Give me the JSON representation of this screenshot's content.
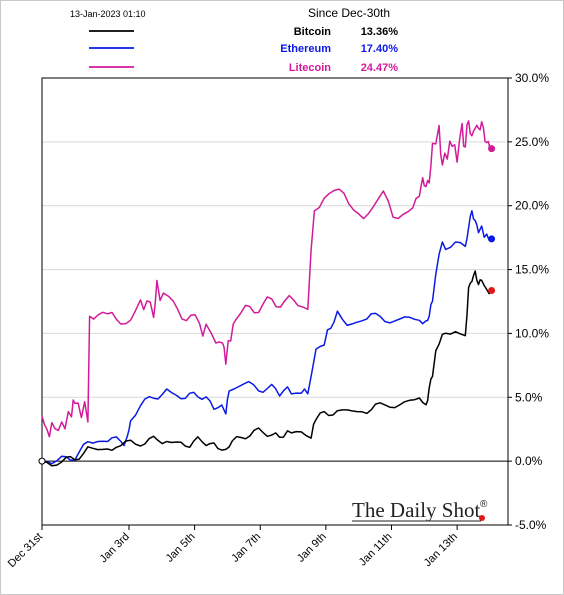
{
  "timestamp": "13-Jan-2023 01:10",
  "header": "Since Dec-30th",
  "brand": "The Daily Shot",
  "brand_mark": "®",
  "colors": {
    "bitcoin": "#000000",
    "ethereum": "#0a1ae6",
    "litecoin": "#d21a9a",
    "endpoint": "#e01818",
    "grid": "#d9d9d9"
  },
  "chart_data": {
    "type": "line",
    "x_ticks": [
      "Dec 31st",
      "Jan 3rd",
      "Jan 5th",
      "Jan 7th",
      "Jan 9th",
      "Jan 11th",
      "Jan 13th"
    ],
    "y_ticks": [
      "30.0%",
      "25.0%",
      "20.0%",
      "15.0%",
      "10.0%",
      "5.0%",
      "0.0%",
      "-5.0%"
    ],
    "ylim": [
      -5,
      30
    ],
    "grid": true,
    "legend_placement": "top",
    "series": [
      {
        "name": "Bitcoin",
        "last": "13.36%",
        "points": [
          [
            0,
            0
          ],
          [
            0.3,
            -0.2
          ],
          [
            0.6,
            0.2
          ],
          [
            1.0,
            0.3
          ],
          [
            1.4,
            0.8
          ],
          [
            1.7,
            0.9
          ],
          [
            2.0,
            1.0
          ],
          [
            2.4,
            0.9
          ],
          [
            2.7,
            1.5
          ],
          [
            3.0,
            1.6
          ],
          [
            3.4,
            1.8
          ],
          [
            3.8,
            1.6
          ],
          [
            4.1,
            1.4
          ],
          [
            4.5,
            1.5
          ],
          [
            5.0,
            1.5
          ],
          [
            5.6,
            0.8
          ],
          [
            5.8,
            1.6
          ],
          [
            6.2,
            2.0
          ],
          [
            6.6,
            2.2
          ],
          [
            7.0,
            2.0
          ],
          [
            7.6,
            2.1
          ],
          [
            7.9,
            2.3
          ],
          [
            8.2,
            2.2
          ],
          [
            8.35,
            3.5
          ],
          [
            8.6,
            3.8
          ],
          [
            9.0,
            3.7
          ],
          [
            9.3,
            3.9
          ],
          [
            9.6,
            3.8
          ],
          [
            9.9,
            4.0
          ],
          [
            10.3,
            4.2
          ],
          [
            10.6,
            4.5
          ],
          [
            10.9,
            4.6
          ],
          [
            11.2,
            4.7
          ],
          [
            11.5,
            4.8
          ],
          [
            11.7,
            4.5
          ],
          [
            11.8,
            5.5
          ],
          [
            11.9,
            7.0
          ],
          [
            12.1,
            9.5
          ],
          [
            12.3,
            10.0
          ],
          [
            12.6,
            10.5
          ],
          [
            12.9,
            9.8
          ],
          [
            13.0,
            13.5
          ],
          [
            13.1,
            14.2
          ],
          [
            13.2,
            14.8
          ],
          [
            13.3,
            13.8
          ],
          [
            13.4,
            14.3
          ],
          [
            13.55,
            13.5
          ],
          [
            13.7,
            13.36
          ]
        ]
      },
      {
        "name": "Ethereum",
        "last": "17.40%",
        "points": [
          [
            0,
            0
          ],
          [
            0.3,
            -0.1
          ],
          [
            0.6,
            0.2
          ],
          [
            1.0,
            0.5
          ],
          [
            1.4,
            1.5
          ],
          [
            1.7,
            1.8
          ],
          [
            2.0,
            1.6
          ],
          [
            2.4,
            1.4
          ],
          [
            2.6,
            1.6
          ],
          [
            2.7,
            3.5
          ],
          [
            3.0,
            4.5
          ],
          [
            3.4,
            5.2
          ],
          [
            3.8,
            5.5
          ],
          [
            4.1,
            5.0
          ],
          [
            4.5,
            5.4
          ],
          [
            5.0,
            4.8
          ],
          [
            5.6,
            3.8
          ],
          [
            5.7,
            5.5
          ],
          [
            6.0,
            5.8
          ],
          [
            6.3,
            5.9
          ],
          [
            6.6,
            5.6
          ],
          [
            7.0,
            5.6
          ],
          [
            7.6,
            5.4
          ],
          [
            7.9,
            5.5
          ],
          [
            8.1,
            5.4
          ],
          [
            8.35,
            8.5
          ],
          [
            8.6,
            9.5
          ],
          [
            8.8,
            10.5
          ],
          [
            9.0,
            11.5
          ],
          [
            9.3,
            10.8
          ],
          [
            9.6,
            11.0
          ],
          [
            9.9,
            11.3
          ],
          [
            10.3,
            11.5
          ],
          [
            10.6,
            11.2
          ],
          [
            10.9,
            10.9
          ],
          [
            11.2,
            11.1
          ],
          [
            11.5,
            11.0
          ],
          [
            11.7,
            10.8
          ],
          [
            11.8,
            11.5
          ],
          [
            11.9,
            12.5
          ],
          [
            12.1,
            16.5
          ],
          [
            12.3,
            17.0
          ],
          [
            12.6,
            17.2
          ],
          [
            12.9,
            16.5
          ],
          [
            13.0,
            18.5
          ],
          [
            13.1,
            19.5
          ],
          [
            13.2,
            18.8
          ],
          [
            13.3,
            18.0
          ],
          [
            13.4,
            18.3
          ],
          [
            13.55,
            17.6
          ],
          [
            13.7,
            17.4
          ]
        ]
      },
      {
        "name": "Litecoin",
        "last": "24.47%",
        "points": [
          [
            0,
            3.5
          ],
          [
            0.15,
            2.2
          ],
          [
            0.3,
            2.8
          ],
          [
            0.5,
            2.5
          ],
          [
            0.7,
            3.0
          ],
          [
            0.9,
            3.8
          ],
          [
            1.0,
            4.5
          ],
          [
            1.2,
            4.0
          ],
          [
            1.4,
            3.8
          ],
          [
            1.45,
            11.0
          ],
          [
            1.7,
            11.5
          ],
          [
            2.0,
            11.2
          ],
          [
            2.4,
            11.0
          ],
          [
            2.7,
            11.4
          ],
          [
            3.0,
            12.0
          ],
          [
            3.2,
            12.5
          ],
          [
            3.4,
            11.8
          ],
          [
            3.5,
            13.5
          ],
          [
            3.7,
            12.8
          ],
          [
            4.0,
            12.3
          ],
          [
            4.4,
            11.4
          ],
          [
            4.8,
            10.6
          ],
          [
            5.0,
            10.0
          ],
          [
            5.3,
            9.6
          ],
          [
            5.5,
            9.0
          ],
          [
            5.6,
            8.0
          ],
          [
            5.75,
            9.5
          ],
          [
            5.9,
            11.0
          ],
          [
            6.2,
            12.0
          ],
          [
            6.6,
            12.3
          ],
          [
            7.0,
            12.5
          ],
          [
            7.4,
            12.1
          ],
          [
            7.8,
            12.4
          ],
          [
            8.1,
            12.2
          ],
          [
            8.3,
            20.0
          ],
          [
            8.6,
            21.0
          ],
          [
            8.9,
            20.5
          ],
          [
            9.2,
            20.8
          ],
          [
            9.5,
            20.0
          ],
          [
            9.8,
            19.2
          ],
          [
            10.1,
            20.1
          ],
          [
            10.4,
            20.5
          ],
          [
            10.7,
            19.0
          ],
          [
            11.0,
            20.0
          ],
          [
            11.3,
            19.8
          ],
          [
            11.5,
            21.0
          ],
          [
            11.6,
            22.0
          ],
          [
            11.7,
            21.5
          ],
          [
            11.8,
            22.0
          ],
          [
            11.9,
            24.5
          ],
          [
            12.1,
            26.0
          ],
          [
            12.2,
            23.2
          ],
          [
            12.35,
            24.2
          ],
          [
            12.5,
            25.4
          ],
          [
            12.65,
            23.8
          ],
          [
            12.8,
            26.2
          ],
          [
            12.9,
            24.5
          ],
          [
            13.0,
            27.0
          ],
          [
            13.1,
            25.0
          ],
          [
            13.2,
            26.5
          ],
          [
            13.3,
            25.8
          ],
          [
            13.4,
            26.6
          ],
          [
            13.5,
            25.2
          ],
          [
            13.6,
            24.8
          ],
          [
            13.7,
            24.47
          ]
        ]
      }
    ]
  }
}
